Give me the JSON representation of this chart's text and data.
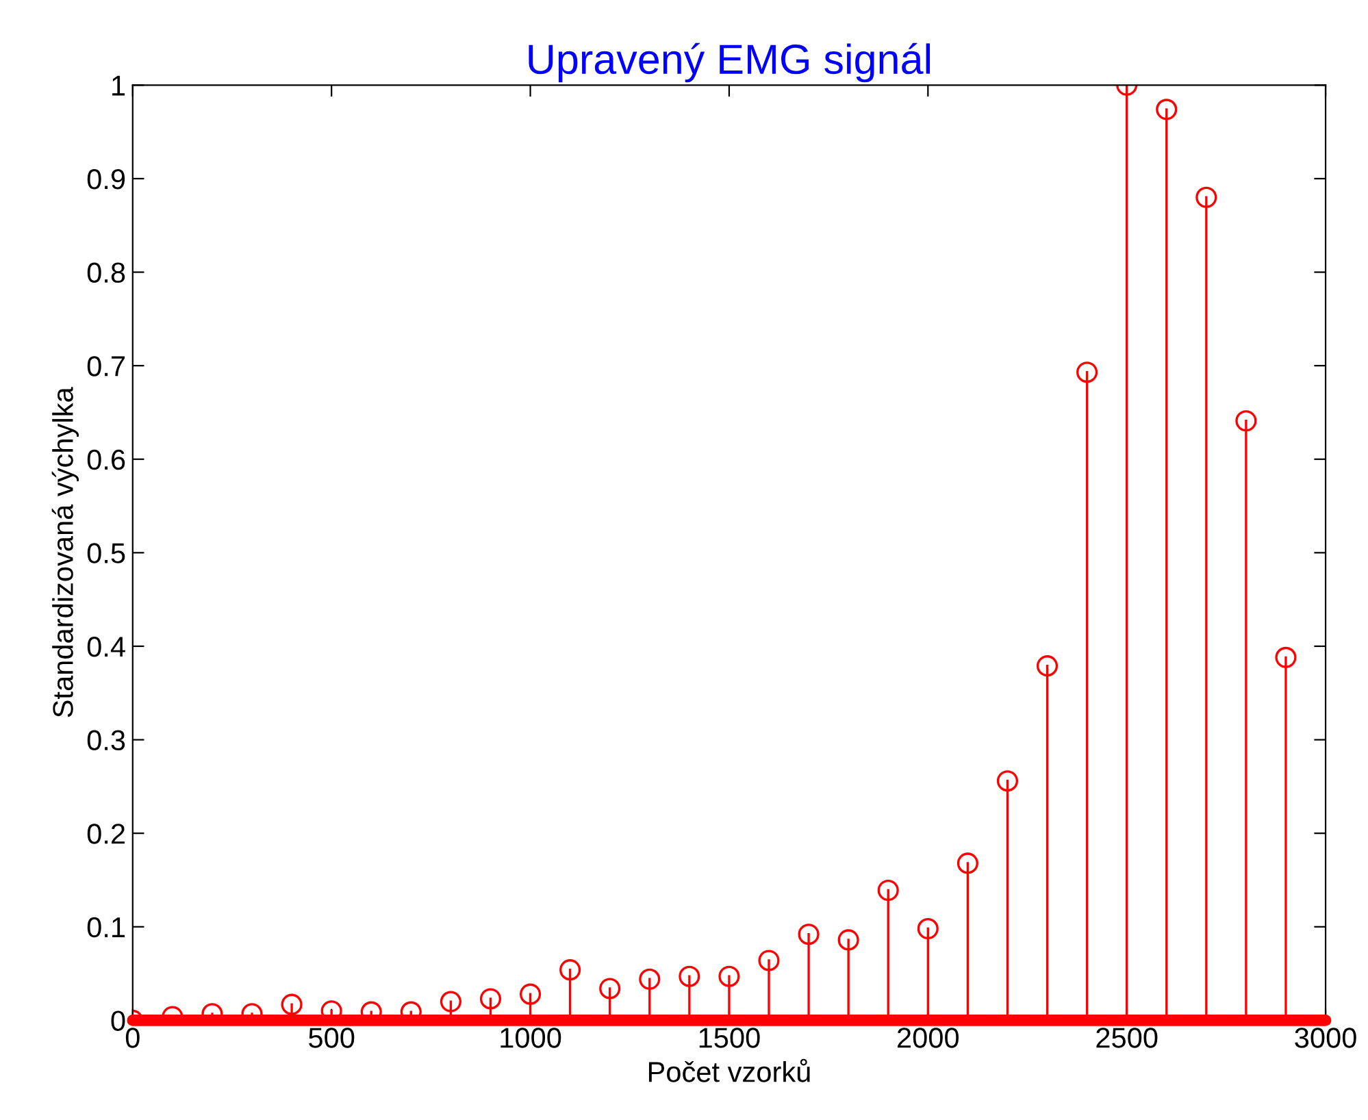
{
  "chart_data": {
    "type": "lollipop",
    "title": "Upravený EMG signál",
    "xlabel": "Počet vzorků",
    "ylabel": "Standardizovaná výchylka",
    "x": [
      0,
      100,
      200,
      300,
      400,
      500,
      600,
      700,
      800,
      900,
      1000,
      1100,
      1200,
      1300,
      1400,
      1500,
      1600,
      1700,
      1800,
      1900,
      2000,
      2100,
      2200,
      2300,
      2400,
      2500,
      2600,
      2700,
      2800,
      2900
    ],
    "series": [
      {
        "color": "#ff0000",
        "values": [
          0,
          0.004,
          0.007,
          0.007,
          0.017,
          0.01,
          0.009,
          0.009,
          0.02,
          0.023,
          0.028,
          0.054,
          0.034,
          0.044,
          0.047,
          0.047,
          0.064,
          0.092,
          0.086,
          0.139,
          0.098,
          0.168,
          0.256,
          0.379,
          0.693,
          1.0,
          0.974,
          0.88,
          0.641,
          0.388
        ]
      }
    ],
    "marker": "circle",
    "xlim": [
      0,
      3000
    ],
    "xticks": [
      0,
      500,
      1000,
      1500,
      2000,
      2500,
      3000
    ],
    "ylim": [
      0,
      1
    ],
    "yticks": [
      0,
      0.1,
      0.2,
      0.3,
      0.4,
      0.5,
      0.6,
      0.7,
      0.8,
      0.9,
      1
    ],
    "grid": false,
    "legend": false
  }
}
